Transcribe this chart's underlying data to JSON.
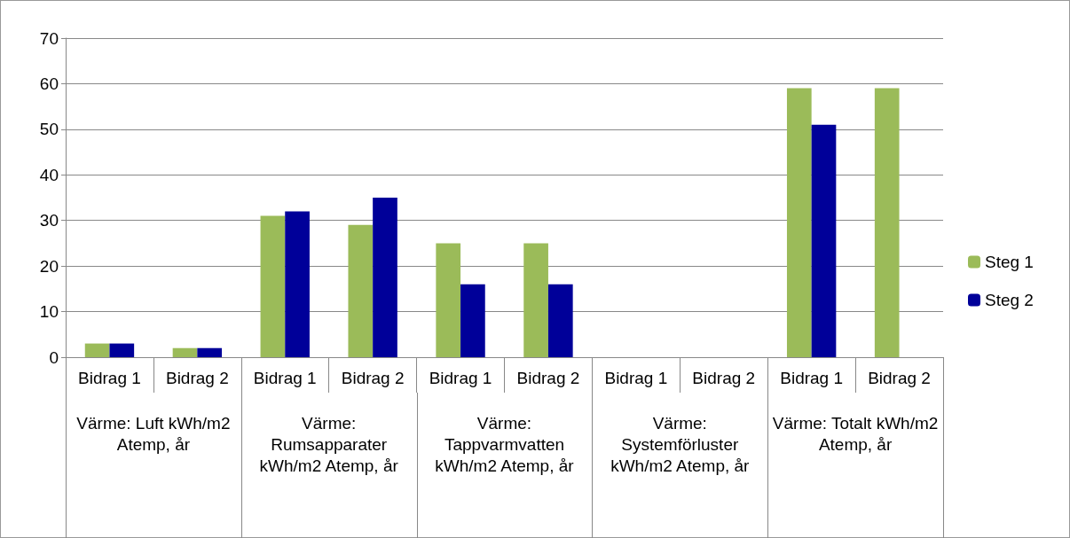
{
  "chart_data": {
    "type": "bar",
    "categories": [
      "Bidrag 1",
      "Bidrag 2",
      "Bidrag 1",
      "Bidrag 2",
      "Bidrag 1",
      "Bidrag 2",
      "Bidrag 1",
      "Bidrag 2",
      "Bidrag 1",
      "Bidrag 2"
    ],
    "series": [
      {
        "name": "Steg 1",
        "color": "#9bbb59",
        "values": [
          3,
          2,
          31,
          29,
          25,
          25,
          null,
          null,
          59,
          59
        ]
      },
      {
        "name": "Steg 2",
        "color": "#000099",
        "values": [
          3,
          2,
          32,
          35,
          16,
          16,
          null,
          null,
          51,
          null
        ]
      }
    ],
    "annotations": [
      "Värme: Luft kWh/m2 Atemp, år",
      "Värme: Rumsapparater kWh/m2 Atemp, år",
      "Värme: Tappvarmvatten kWh/m2 Atemp, år",
      "Värme: Systemförluster kWh/m2 Atemp, år",
      "Värme: Totalt kWh/m2 Atemp, år"
    ],
    "ylim": [
      0,
      70
    ],
    "yticks": [
      0,
      10,
      20,
      30,
      40,
      50,
      60,
      70
    ],
    "grid": "y",
    "legend": "right"
  }
}
